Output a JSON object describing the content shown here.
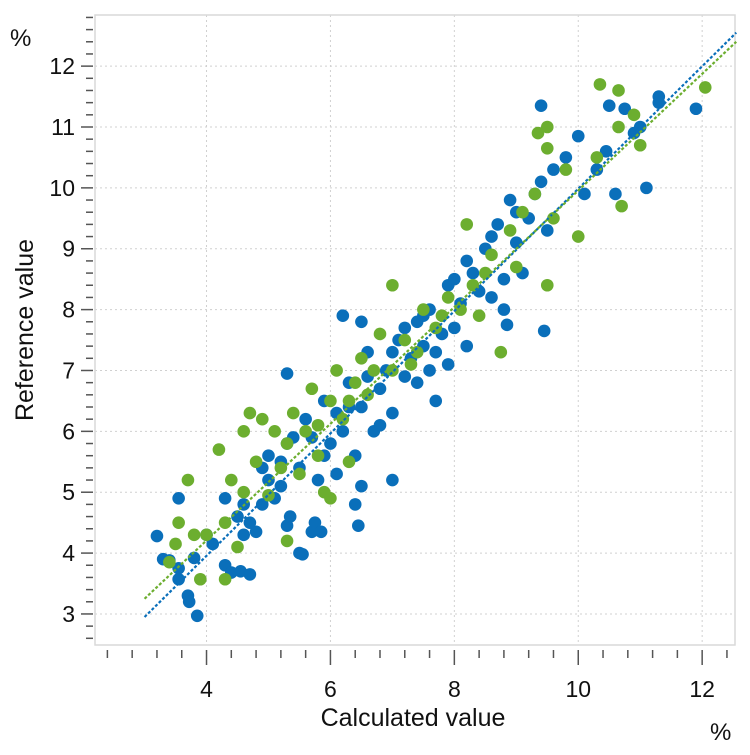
{
  "chart_data": {
    "type": "scatter",
    "title": "",
    "xlabel": "Calculated value",
    "ylabel": "Reference value",
    "x_unit": "%",
    "y_unit": "%",
    "xlim": [
      2.2,
      12.53
    ],
    "ylim": [
      2.49,
      12.84
    ],
    "x_ticks": [
      4,
      6,
      8,
      10,
      12
    ],
    "y_ticks": [
      3,
      4,
      5,
      6,
      7,
      8,
      9,
      10,
      11,
      12
    ],
    "x_tick_labels": [
      "4",
      "6",
      "8",
      "10",
      "12"
    ],
    "y_tick_labels": [
      "3",
      "4",
      "5",
      "6",
      "7",
      "8",
      "9",
      "10",
      "11",
      "12"
    ],
    "grid": true,
    "legend": "none",
    "series": [
      {
        "color": "#0a6fba",
        "fit_line": [
          [
            3.0,
            2.95
          ],
          [
            12.55,
            12.55
          ]
        ],
        "points": [
          [
            3.2,
            4.28
          ],
          [
            3.3,
            3.9
          ],
          [
            3.4,
            3.88
          ],
          [
            3.55,
            3.75
          ],
          [
            3.55,
            3.57
          ],
          [
            3.55,
            4.9
          ],
          [
            3.7,
            3.3
          ],
          [
            3.72,
            3.2
          ],
          [
            3.85,
            2.97
          ],
          [
            3.8,
            3.92
          ],
          [
            4.0,
            4.3
          ],
          [
            4.1,
            4.15
          ],
          [
            4.3,
            3.8
          ],
          [
            4.4,
            3.68
          ],
          [
            4.55,
            3.7
          ],
          [
            4.7,
            3.65
          ],
          [
            4.3,
            4.9
          ],
          [
            4.5,
            4.6
          ],
          [
            4.6,
            4.8
          ],
          [
            4.7,
            4.5
          ],
          [
            4.8,
            4.35
          ],
          [
            4.9,
            4.8
          ],
          [
            5.0,
            5.2
          ],
          [
            5.1,
            4.9
          ],
          [
            5.3,
            4.45
          ],
          [
            5.35,
            4.6
          ],
          [
            5.5,
            4.0
          ],
          [
            5.55,
            3.98
          ],
          [
            5.7,
            4.35
          ],
          [
            5.75,
            4.5
          ],
          [
            5.85,
            4.35
          ],
          [
            6.4,
            4.8
          ],
          [
            6.45,
            4.45
          ],
          [
            5.2,
            5.5
          ],
          [
            5.3,
            5.8
          ],
          [
            5.5,
            5.4
          ],
          [
            5.6,
            6.2
          ],
          [
            5.7,
            5.9
          ],
          [
            5.8,
            5.2
          ],
          [
            5.9,
            6.5
          ],
          [
            6.0,
            5.8
          ],
          [
            6.1,
            6.3
          ],
          [
            6.2,
            6.0
          ],
          [
            6.3,
            6.8
          ],
          [
            6.4,
            5.6
          ],
          [
            6.5,
            6.4
          ],
          [
            6.6,
            7.3
          ],
          [
            6.7,
            6.0
          ],
          [
            6.8,
            6.7
          ],
          [
            6.9,
            7.0
          ],
          [
            7.0,
            6.3
          ],
          [
            7.1,
            7.5
          ],
          [
            7.2,
            6.9
          ],
          [
            7.3,
            7.2
          ],
          [
            7.4,
            7.8
          ],
          [
            7.5,
            7.4
          ],
          [
            7.6,
            7.0
          ],
          [
            7.7,
            6.5
          ],
          [
            7.6,
            8.0
          ],
          [
            7.8,
            7.6
          ],
          [
            7.9,
            8.4
          ],
          [
            8.0,
            7.7
          ],
          [
            8.1,
            8.1
          ],
          [
            8.2,
            7.4
          ],
          [
            8.3,
            8.6
          ],
          [
            8.4,
            8.3
          ],
          [
            8.5,
            9.0
          ],
          [
            8.6,
            8.2
          ],
          [
            8.7,
            9.4
          ],
          [
            8.8,
            8.5
          ],
          [
            8.85,
            7.75
          ],
          [
            8.9,
            9.8
          ],
          [
            9.0,
            9.1
          ],
          [
            9.1,
            8.6
          ],
          [
            9.2,
            9.5
          ],
          [
            9.3,
            9.9
          ],
          [
            9.4,
            10.1
          ],
          [
            9.4,
            11.35
          ],
          [
            9.45,
            7.65
          ],
          [
            9.5,
            9.3
          ],
          [
            9.6,
            10.3
          ],
          [
            9.8,
            10.5
          ],
          [
            10.0,
            10.85
          ],
          [
            10.1,
            9.9
          ],
          [
            10.3,
            10.3
          ],
          [
            10.45,
            10.6
          ],
          [
            10.5,
            11.35
          ],
          [
            10.6,
            9.9
          ],
          [
            10.75,
            11.3
          ],
          [
            10.9,
            10.9
          ],
          [
            11.0,
            11.0
          ],
          [
            11.1,
            10.0
          ],
          [
            11.3,
            11.5
          ],
          [
            11.3,
            11.4
          ],
          [
            11.9,
            11.3
          ],
          [
            6.2,
            7.9
          ],
          [
            6.5,
            7.8
          ],
          [
            5.3,
            6.95
          ],
          [
            6.5,
            5.1
          ],
          [
            7.0,
            5.2
          ],
          [
            5.0,
            5.6
          ],
          [
            5.2,
            5.1
          ],
          [
            5.4,
            5.9
          ],
          [
            5.9,
            5.6
          ],
          [
            6.1,
            5.3
          ],
          [
            6.3,
            6.4
          ],
          [
            6.6,
            6.9
          ],
          [
            6.8,
            6.1
          ],
          [
            7.0,
            7.3
          ],
          [
            7.2,
            7.7
          ],
          [
            7.4,
            6.8
          ],
          [
            7.5,
            7.9
          ],
          [
            7.7,
            7.3
          ],
          [
            7.9,
            7.1
          ],
          [
            8.0,
            8.5
          ],
          [
            8.2,
            8.8
          ],
          [
            8.6,
            9.2
          ],
          [
            8.8,
            8.0
          ],
          [
            9.0,
            9.6
          ],
          [
            4.9,
            5.4
          ],
          [
            4.6,
            4.3
          ]
        ]
      },
      {
        "color": "#6cae2f",
        "fit_line": [
          [
            3.0,
            3.25
          ],
          [
            12.55,
            12.4
          ]
        ],
        "points": [
          [
            3.4,
            3.85
          ],
          [
            3.5,
            4.15
          ],
          [
            3.55,
            4.5
          ],
          [
            3.7,
            5.2
          ],
          [
            3.8,
            4.3
          ],
          [
            3.9,
            3.57
          ],
          [
            4.0,
            4.3
          ],
          [
            4.2,
            5.7
          ],
          [
            4.3,
            3.57
          ],
          [
            4.3,
            4.5
          ],
          [
            4.4,
            5.2
          ],
          [
            4.5,
            4.1
          ],
          [
            4.6,
            5.0
          ],
          [
            4.7,
            6.3
          ],
          [
            4.8,
            5.5
          ],
          [
            4.9,
            6.2
          ],
          [
            5.0,
            4.95
          ],
          [
            5.1,
            6.0
          ],
          [
            5.3,
            4.2
          ],
          [
            5.3,
            5.8
          ],
          [
            5.4,
            6.3
          ],
          [
            5.5,
            5.3
          ],
          [
            5.6,
            6.0
          ],
          [
            5.7,
            6.7
          ],
          [
            5.8,
            5.6
          ],
          [
            5.9,
            5.0
          ],
          [
            6.0,
            6.5
          ],
          [
            6.1,
            7.0
          ],
          [
            6.2,
            6.2
          ],
          [
            6.3,
            5.5
          ],
          [
            6.4,
            6.8
          ],
          [
            6.5,
            7.2
          ],
          [
            6.6,
            6.6
          ],
          [
            6.8,
            7.6
          ],
          [
            7.0,
            7.0
          ],
          [
            7.2,
            7.5
          ],
          [
            7.4,
            7.3
          ],
          [
            7.5,
            8.0
          ],
          [
            7.7,
            7.7
          ],
          [
            7.9,
            8.2
          ],
          [
            8.1,
            8.0
          ],
          [
            8.2,
            9.4
          ],
          [
            8.3,
            8.4
          ],
          [
            8.4,
            7.9
          ],
          [
            8.6,
            8.9
          ],
          [
            8.75,
            7.3
          ],
          [
            8.9,
            9.3
          ],
          [
            9.0,
            8.7
          ],
          [
            9.1,
            9.6
          ],
          [
            9.3,
            9.9
          ],
          [
            9.35,
            10.9
          ],
          [
            9.5,
            11.0
          ],
          [
            9.5,
            10.65
          ],
          [
            9.5,
            8.4
          ],
          [
            9.6,
            9.5
          ],
          [
            9.8,
            10.3
          ],
          [
            10.0,
            9.2
          ],
          [
            10.3,
            10.5
          ],
          [
            10.35,
            11.7
          ],
          [
            10.65,
            11.6
          ],
          [
            10.65,
            11.0
          ],
          [
            10.7,
            9.7
          ],
          [
            10.9,
            11.2
          ],
          [
            11.0,
            10.7
          ],
          [
            12.05,
            11.65
          ],
          [
            6.0,
            4.9
          ],
          [
            7.0,
            8.4
          ],
          [
            4.6,
            6.0
          ],
          [
            5.2,
            5.4
          ],
          [
            5.8,
            6.1
          ],
          [
            6.3,
            6.5
          ],
          [
            6.7,
            7.0
          ],
          [
            7.3,
            7.1
          ],
          [
            7.8,
            7.9
          ],
          [
            8.5,
            8.6
          ]
        ]
      }
    ]
  }
}
